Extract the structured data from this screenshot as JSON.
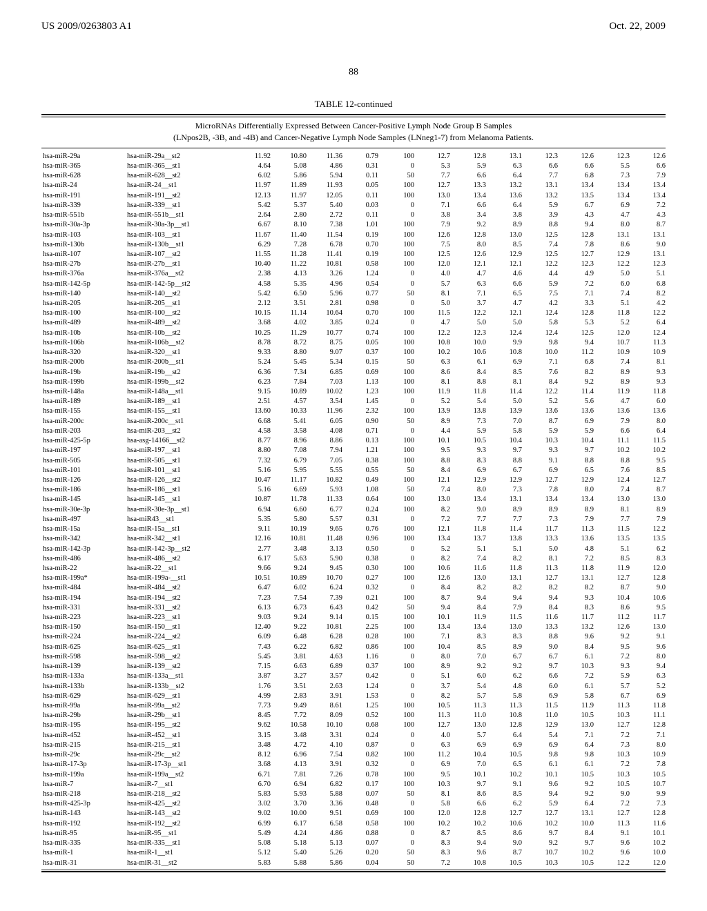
{
  "header": {
    "left": "US 2009/0263803 A1",
    "right": "Oct. 22, 2009"
  },
  "page_number": "88",
  "table": {
    "title": "TABLE 12-continued",
    "subtitle_line1": "MicroRNAs Differentially Expressed Between Cancer-Positive Lymph Node Group B Samples",
    "subtitle_line2": "(LNpos2B, -3B, and -4B) and Cancer-Negative Lymph Node Samples (LNneg1-7) from Melanoma Patients.",
    "columns_widths": [
      "118px",
      "150px",
      "54px",
      "48px",
      "48px",
      "48px",
      "48px",
      "48px",
      "48px",
      "48px",
      "48px",
      "48px",
      "48px",
      "48px"
    ],
    "text_color": "#000000",
    "background_color": "#ffffff",
    "font_size_pt": 10.5,
    "rows": [
      [
        "hsa-miR-29a",
        "hsa-miR-29a__st2",
        "11.92",
        "10.80",
        "11.36",
        "0.79",
        "100",
        "12.7",
        "12.8",
        "13.1",
        "12.3",
        "12.6",
        "12.3",
        "12.6"
      ],
      [
        "hsa-miR-365",
        "hsa-miR-365__st1",
        "4.64",
        "5.08",
        "4.86",
        "0.31",
        "0",
        "5.3",
        "5.9",
        "6.3",
        "6.6",
        "6.6",
        "5.5",
        "6.6"
      ],
      [
        "hsa-miR-628",
        "hsa-miR-628__st2",
        "6.02",
        "5.86",
        "5.94",
        "0.11",
        "50",
        "7.7",
        "6.6",
        "6.4",
        "7.7",
        "6.8",
        "7.3",
        "7.9"
      ],
      [
        "hsa-miR-24",
        "hsa-miR-24__st1",
        "11.97",
        "11.89",
        "11.93",
        "0.05",
        "100",
        "12.7",
        "13.3",
        "13.2",
        "13.1",
        "13.4",
        "13.4",
        "13.4"
      ],
      [
        "hsa-miR-191",
        "hsa-miR-191__st2",
        "12.13",
        "11.97",
        "12.05",
        "0.11",
        "100",
        "13.0",
        "13.4",
        "13.6",
        "13.2",
        "13.5",
        "13.4",
        "13.4"
      ],
      [
        "hsa-miR-339",
        "hsa-miR-339__st1",
        "5.42",
        "5.37",
        "5.40",
        "0.03",
        "0",
        "7.1",
        "6.6",
        "6.4",
        "5.9",
        "6.7",
        "6.9",
        "7.2"
      ],
      [
        "hsa-miR-551b",
        "hsa-miR-551b__st1",
        "2.64",
        "2.80",
        "2.72",
        "0.11",
        "0",
        "3.8",
        "3.4",
        "3.8",
        "3.9",
        "4.3",
        "4.7",
        "4.3"
      ],
      [
        "hsa-miR-30a-3p",
        "hsa-miR-30a-3p__st1",
        "6.67",
        "8.10",
        "7.38",
        "1.01",
        "100",
        "7.9",
        "9.2",
        "8.9",
        "8.8",
        "9.4",
        "8.0",
        "8.7"
      ],
      [
        "hsa-miR-103",
        "hsa-miR-103__st1",
        "11.67",
        "11.40",
        "11.54",
        "0.19",
        "100",
        "12.6",
        "12.8",
        "13.0",
        "12.5",
        "12.8",
        "13.1",
        "13.1"
      ],
      [
        "hsa-miR-130b",
        "hsa-miR-130b__st1",
        "6.29",
        "7.28",
        "6.78",
        "0.70",
        "100",
        "7.5",
        "8.0",
        "8.5",
        "7.4",
        "7.8",
        "8.6",
        "9.0"
      ],
      [
        "hsa-miR-107",
        "hsa-miR-107__st2",
        "11.55",
        "11.28",
        "11.41",
        "0.19",
        "100",
        "12.5",
        "12.6",
        "12.9",
        "12.5",
        "12.7",
        "12.9",
        "13.1"
      ],
      [
        "hsa-miR-27b",
        "hsa-miR-27b__st1",
        "10.40",
        "11.22",
        "10.81",
        "0.58",
        "100",
        "12.0",
        "12.1",
        "12.1",
        "12.2",
        "12.3",
        "12.2",
        "12.3"
      ],
      [
        "hsa-miR-376a",
        "hsa-miR-376a__st2",
        "2.38",
        "4.13",
        "3.26",
        "1.24",
        "0",
        "4.0",
        "4.7",
        "4.6",
        "4.4",
        "4.9",
        "5.0",
        "5.1"
      ],
      [
        "hsa-miR-142-5p",
        "hsa-miR-142-5p__st2",
        "4.58",
        "5.35",
        "4.96",
        "0.54",
        "0",
        "5.7",
        "6.3",
        "6.6",
        "5.9",
        "7.2",
        "6.0",
        "6.8"
      ],
      [
        "hsa-miR-140",
        "hsa-miR-140__st2",
        "5.42",
        "6.50",
        "5.96",
        "0.77",
        "50",
        "8.1",
        "7.1",
        "6.5",
        "7.5",
        "7.1",
        "7.4",
        "8.2"
      ],
      [
        "hsa-miR-205",
        "hsa-miR-205__st1",
        "2.12",
        "3.51",
        "2.81",
        "0.98",
        "0",
        "5.0",
        "3.7",
        "4.7",
        "4.2",
        "3.3",
        "5.1",
        "4.2"
      ],
      [
        "hsa-miR-100",
        "hsa-miR-100__st2",
        "10.15",
        "11.14",
        "10.64",
        "0.70",
        "100",
        "11.5",
        "12.2",
        "12.1",
        "12.4",
        "12.8",
        "11.8",
        "12.2"
      ],
      [
        "hsa-miR-489",
        "hsa-miR-489__st2",
        "3.68",
        "4.02",
        "3.85",
        "0.24",
        "0",
        "4.7",
        "5.0",
        "5.0",
        "5.8",
        "5.3",
        "5.2",
        "6.4"
      ],
      [
        "hsa-miR-10b",
        "hsa-miR-10b__st2",
        "10.25",
        "11.29",
        "10.77",
        "0.74",
        "100",
        "12.2",
        "12.3",
        "12.4",
        "12.4",
        "12.5",
        "12.0",
        "12.4"
      ],
      [
        "hsa-miR-106b",
        "hsa-miR-106b__st2",
        "8.78",
        "8.72",
        "8.75",
        "0.05",
        "100",
        "10.8",
        "10.0",
        "9.9",
        "9.8",
        "9.4",
        "10.7",
        "11.3"
      ],
      [
        "hsa-miR-320",
        "hsa-miR-320__st1",
        "9.33",
        "8.80",
        "9.07",
        "0.37",
        "100",
        "10.2",
        "10.6",
        "10.8",
        "10.0",
        "11.2",
        "10.9",
        "10.9"
      ],
      [
        "hsa-miR-200b",
        "hsa-miR-200b__st1",
        "5.24",
        "5.45",
        "5.34",
        "0.15",
        "50",
        "6.3",
        "6.1",
        "6.9",
        "7.1",
        "6.8",
        "7.4",
        "8.1"
      ],
      [
        "hsa-miR-19b",
        "hsa-miR-19b__st2",
        "6.36",
        "7.34",
        "6.85",
        "0.69",
        "100",
        "8.6",
        "8.4",
        "8.5",
        "7.6",
        "8.2",
        "8.9",
        "9.3"
      ],
      [
        "hsa-miR-199b",
        "hsa-miR-199b__st2",
        "6.23",
        "7.84",
        "7.03",
        "1.13",
        "100",
        "8.1",
        "8.8",
        "8.1",
        "8.4",
        "9.2",
        "8.9",
        "9.3"
      ],
      [
        "hsa-miR-148a",
        "hsa-miR-148a__st1",
        "9.15",
        "10.89",
        "10.02",
        "1.23",
        "100",
        "11.9",
        "11.8",
        "11.4",
        "12.2",
        "11.4",
        "11.9",
        "11.8"
      ],
      [
        "hsa-miR-189",
        "hsa-miR-189__st1",
        "2.51",
        "4.57",
        "3.54",
        "1.45",
        "0",
        "5.2",
        "5.4",
        "5.0",
        "5.2",
        "5.6",
        "4.7",
        "6.0"
      ],
      [
        "hsa-miR-155",
        "hsa-miR-155__st1",
        "13.60",
        "10.33",
        "11.96",
        "2.32",
        "100",
        "13.9",
        "13.8",
        "13.9",
        "13.6",
        "13.6",
        "13.6",
        "13.6"
      ],
      [
        "hsa-miR-200c",
        "hsa-miR-200c__st1",
        "6.68",
        "5.41",
        "6.05",
        "0.90",
        "50",
        "8.9",
        "7.3",
        "7.0",
        "8.7",
        "6.9",
        "7.9",
        "8.0"
      ],
      [
        "hsa-miR-203",
        "hsa-miR-203__st2",
        "4.58",
        "3.58",
        "4.08",
        "0.71",
        "0",
        "4.4",
        "5.9",
        "5.8",
        "5.9",
        "5.9",
        "6.6",
        "6.4"
      ],
      [
        "hsa-miR-425-5p",
        "hsa-asg-14166__st2",
        "8.77",
        "8.96",
        "8.86",
        "0.13",
        "100",
        "10.1",
        "10.5",
        "10.4",
        "10.3",
        "10.4",
        "11.1",
        "11.5"
      ],
      [
        "hsa-miR-197",
        "hsa-miR-197__st1",
        "8.80",
        "7.08",
        "7.94",
        "1.21",
        "100",
        "9.5",
        "9.3",
        "9.7",
        "9.3",
        "9.7",
        "10.2",
        "10.2"
      ],
      [
        "hsa-miR-505",
        "hsa-miR-505__st1",
        "7.32",
        "6.79",
        "7.05",
        "0.38",
        "100",
        "8.8",
        "8.3",
        "8.8",
        "9.1",
        "8.8",
        "8.8",
        "9.5"
      ],
      [
        "hsa-miR-101",
        "hsa-miR-101__st1",
        "5.16",
        "5.95",
        "5.55",
        "0.55",
        "50",
        "8.4",
        "6.9",
        "6.7",
        "6.9",
        "6.5",
        "7.6",
        "8.5"
      ],
      [
        "hsa-miR-126",
        "hsa-miR-126__st2",
        "10.47",
        "11.17",
        "10.82",
        "0.49",
        "100",
        "12.1",
        "12.9",
        "12.9",
        "12.7",
        "12.9",
        "12.4",
        "12.7"
      ],
      [
        "hsa-miR-186",
        "hsa-miR-186__st1",
        "5.16",
        "6.69",
        "5.93",
        "1.08",
        "50",
        "7.4",
        "8.0",
        "7.3",
        "7.8",
        "8.0",
        "7.4",
        "8.7"
      ],
      [
        "hsa-miR-145",
        "hsa-miR-145__st1",
        "10.87",
        "11.78",
        "11.33",
        "0.64",
        "100",
        "13.0",
        "13.4",
        "13.1",
        "13.4",
        "13.4",
        "13.0",
        "13.0"
      ],
      [
        "hsa-miR-30e-3p",
        "hsa-miR-30e-3p__st1",
        "6.94",
        "6.60",
        "6.77",
        "0.24",
        "100",
        "8.2",
        "9.0",
        "8.9",
        "8.9",
        "8.9",
        "8.1",
        "8.9"
      ],
      [
        "hsa-miR-497",
        "hsa-miR43__st1",
        "5.35",
        "5.80",
        "5.57",
        "0.31",
        "0",
        "7.2",
        "7.7",
        "7.7",
        "7.3",
        "7.9",
        "7.7",
        "7.9"
      ],
      [
        "hsa-miR-15a",
        "hsa-miR-15a__st1",
        "9.11",
        "10.19",
        "9.65",
        "0.76",
        "100",
        "12.1",
        "11.8",
        "11.4",
        "11.7",
        "11.3",
        "11.5",
        "12.2"
      ],
      [
        "hsa-miR-342",
        "hsa-miR-342__st1",
        "12.16",
        "10.81",
        "11.48",
        "0.96",
        "100",
        "13.4",
        "13.7",
        "13.8",
        "13.3",
        "13.6",
        "13.5",
        "13.5"
      ],
      [
        "hsa-miR-142-3p",
        "hsa-miR-142-3p__st2",
        "2.77",
        "3.48",
        "3.13",
        "0.50",
        "0",
        "5.2",
        "5.1",
        "5.1",
        "5.0",
        "4.8",
        "5.1",
        "6.2"
      ],
      [
        "hsa-miR-486",
        "hsa-miR-486__st2",
        "6.17",
        "5.63",
        "5.90",
        "0.38",
        "0",
        "8.2",
        "7.4",
        "8.2",
        "8.1",
        "7.2",
        "8.5",
        "8.3"
      ],
      [
        "hsa-miR-22",
        "hsa-miR-22__st1",
        "9.66",
        "9.24",
        "9.45",
        "0.30",
        "100",
        "10.6",
        "11.6",
        "11.8",
        "11.3",
        "11.8",
        "11.9",
        "12.0"
      ],
      [
        "hsa-miR-199a*",
        "hsa-miR-199a-__st1",
        "10.51",
        "10.89",
        "10.70",
        "0.27",
        "100",
        "12.6",
        "13.0",
        "13.1",
        "12.7",
        "13.1",
        "12.7",
        "12.8"
      ],
      [
        "hsa-miR-484",
        "hsa-miR-484__st2",
        "6.47",
        "6.02",
        "6.24",
        "0.32",
        "0",
        "8.4",
        "8.2",
        "8.2",
        "8.2",
        "8.2",
        "8.7",
        "9.0"
      ],
      [
        "hsa-miR-194",
        "hsa-miR-194__st2",
        "7.23",
        "7.54",
        "7.39",
        "0.21",
        "100",
        "8.7",
        "9.4",
        "9.4",
        "9.4",
        "9.3",
        "10.4",
        "10.6"
      ],
      [
        "hsa-miR-331",
        "hsa-miR-331__st2",
        "6.13",
        "6.73",
        "6.43",
        "0.42",
        "50",
        "9.4",
        "8.4",
        "7.9",
        "8.4",
        "8.3",
        "8.6",
        "9.5"
      ],
      [
        "hsa-miR-223",
        "hsa-miR-223__st1",
        "9.03",
        "9.24",
        "9.14",
        "0.15",
        "100",
        "10.1",
        "11.9",
        "11.5",
        "11.6",
        "11.7",
        "11.2",
        "11.7"
      ],
      [
        "hsa-miR-150",
        "hsa-miR-150__st1",
        "12.40",
        "9.22",
        "10.81",
        "2.25",
        "100",
        "13.4",
        "13.4",
        "13.0",
        "13.3",
        "13.2",
        "12.6",
        "13.0"
      ],
      [
        "hsa-miR-224",
        "hsa-miR-224__st2",
        "6.09",
        "6.48",
        "6.28",
        "0.28",
        "100",
        "7.1",
        "8.3",
        "8.3",
        "8.8",
        "9.6",
        "9.2",
        "9.1"
      ],
      [
        "hsa-miR-625",
        "hsa-miR-625__st1",
        "7.43",
        "6.22",
        "6.82",
        "0.86",
        "100",
        "10.4",
        "8.5",
        "8.9",
        "9.0",
        "8.4",
        "9.5",
        "9.6"
      ],
      [
        "hsa-miR-598",
        "hsa-miR-598__st2",
        "5.45",
        "3.81",
        "4.63",
        "1.16",
        "0",
        "8.0",
        "7.0",
        "6.7",
        "6.7",
        "6.1",
        "7.2",
        "8.0"
      ],
      [
        "hsa-miR-139",
        "hsa-miR-139__st2",
        "7.15",
        "6.63",
        "6.89",
        "0.37",
        "100",
        "8.9",
        "9.2",
        "9.2",
        "9.7",
        "10.3",
        "9.3",
        "9.4"
      ],
      [
        "hsa-miR-133a",
        "hsa-miR-133a__st1",
        "3.87",
        "3.27",
        "3.57",
        "0.42",
        "0",
        "5.1",
        "6.0",
        "6.2",
        "6.6",
        "7.2",
        "5.9",
        "6.3"
      ],
      [
        "hsa-miR-133b",
        "hsa-miR-133b__st2",
        "1.76",
        "3.51",
        "2.63",
        "1.24",
        "0",
        "3.7",
        "5.4",
        "4.8",
        "6.0",
        "6.1",
        "5.7",
        "5.2"
      ],
      [
        "hsa-miR-629",
        "hsa-miR-629__st1",
        "4.99",
        "2.83",
        "3.91",
        "1.53",
        "0",
        "8.2",
        "5.7",
        "5.8",
        "6.9",
        "5.8",
        "6.7",
        "6.9"
      ],
      [
        "hsa-miR-99a",
        "hsa-miR-99a__st2",
        "7.73",
        "9.49",
        "8.61",
        "1.25",
        "100",
        "10.5",
        "11.3",
        "11.3",
        "11.5",
        "11.9",
        "11.3",
        "11.8"
      ],
      [
        "hsa-miR-29b",
        "hsa-miR-29b__st1",
        "8.45",
        "7.72",
        "8.09",
        "0.52",
        "100",
        "11.3",
        "11.0",
        "10.8",
        "11.0",
        "10.5",
        "10.3",
        "11.1"
      ],
      [
        "hsa-miR-195",
        "hsa-miR-195__st2",
        "9.62",
        "10.58",
        "10.10",
        "0.68",
        "100",
        "12.7",
        "13.0",
        "12.8",
        "12.9",
        "13.0",
        "12.7",
        "12.8"
      ],
      [
        "hsa-miR-452",
        "hsa-miR-452__st1",
        "3.15",
        "3.48",
        "3.31",
        "0.24",
        "0",
        "4.0",
        "5.7",
        "6.4",
        "5.4",
        "7.1",
        "7.2",
        "7.1"
      ],
      [
        "hsa-miR-215",
        "hsa-miR-215__st1",
        "3.48",
        "4.72",
        "4.10",
        "0.87",
        "0",
        "6.3",
        "6.9",
        "6.9",
        "6.9",
        "6.4",
        "7.3",
        "8.0"
      ],
      [
        "hsa-miR-29c",
        "hsa-miR-29c__st2",
        "8.12",
        "6.96",
        "7.54",
        "0.82",
        "100",
        "11.2",
        "10.4",
        "10.5",
        "9.8",
        "9.8",
        "10.3",
        "10.9"
      ],
      [
        "hsa-miR-17-3p",
        "hsa-miR-17-3p__st1",
        "3.68",
        "4.13",
        "3.91",
        "0.32",
        "0",
        "6.9",
        "7.0",
        "6.5",
        "6.1",
        "6.1",
        "7.2",
        "7.8"
      ],
      [
        "hsa-miR-199a",
        "hsa-miR-199a__st2",
        "6.71",
        "7.81",
        "7.26",
        "0.78",
        "100",
        "9.5",
        "10.1",
        "10.2",
        "10.1",
        "10.5",
        "10.3",
        "10.5"
      ],
      [
        "hsa-miR-7",
        "hsa-miR-7__st1",
        "6.70",
        "6.94",
        "6.82",
        "0.17",
        "100",
        "10.3",
        "9.7",
        "9.1",
        "9.6",
        "9.2",
        "10.5",
        "10.7"
      ],
      [
        "hsa-miR-218",
        "hsa-miR-218__st2",
        "5.83",
        "5.93",
        "5.88",
        "0.07",
        "50",
        "8.1",
        "8.6",
        "8.5",
        "9.4",
        "9.2",
        "9.0",
        "9.9"
      ],
      [
        "hsa-miR-425-3p",
        "hsa-miR-425__st2",
        "3.02",
        "3.70",
        "3.36",
        "0.48",
        "0",
        "5.8",
        "6.6",
        "6.2",
        "5.9",
        "6.4",
        "7.2",
        "7.3"
      ],
      [
        "hsa-miR-143",
        "hsa-miR-143__st2",
        "9.02",
        "10.00",
        "9.51",
        "0.69",
        "100",
        "12.0",
        "12.8",
        "12.7",
        "12.7",
        "13.1",
        "12.7",
        "12.8"
      ],
      [
        "hsa-miR-192",
        "hsa-miR-192__st2",
        "6.99",
        "6.17",
        "6.58",
        "0.58",
        "100",
        "10.2",
        "10.2",
        "10.6",
        "10.2",
        "10.0",
        "11.3",
        "11.6"
      ],
      [
        "hsa-miR-95",
        "hsa-miR-95__st1",
        "5.49",
        "4.24",
        "4.86",
        "0.88",
        "0",
        "8.7",
        "8.5",
        "8.6",
        "9.7",
        "8.4",
        "9.1",
        "10.1"
      ],
      [
        "hsa-miR-335",
        "hsa-miR-335__st1",
        "5.08",
        "5.18",
        "5.13",
        "0.07",
        "0",
        "8.3",
        "9.4",
        "9.0",
        "9.2",
        "9.7",
        "9.6",
        "10.2"
      ],
      [
        "hsa-miR-1",
        "hsa-miR-1__st1",
        "5.12",
        "5.40",
        "5.26",
        "0.20",
        "50",
        "8.3",
        "9.6",
        "8.7",
        "10.7",
        "10.2",
        "9.6",
        "10.0"
      ],
      [
        "hsa-miR-31",
        "hsa-miR-31__st2",
        "5.83",
        "5.88",
        "5.86",
        "0.04",
        "50",
        "7.2",
        "10.8",
        "10.5",
        "10.3",
        "10.5",
        "12.2",
        "12.0"
      ]
    ]
  }
}
